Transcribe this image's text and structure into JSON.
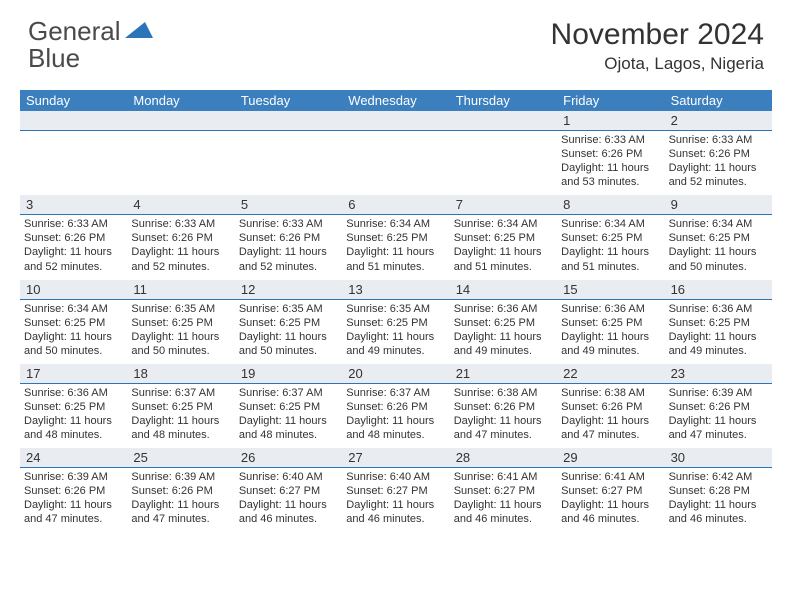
{
  "brand": {
    "part1": "General",
    "part2": "Blue"
  },
  "colors": {
    "header_bg": "#3b7fbf",
    "daynum_bg": "#e9edf1",
    "daynum_border": "#2b74b8",
    "text": "#333333",
    "logo_gray": "#4a4a4a",
    "logo_blue": "#2b74b8",
    "white": "#ffffff"
  },
  "title": "November 2024",
  "location": "Ojota, Lagos, Nigeria",
  "weekdays": [
    "Sunday",
    "Monday",
    "Tuesday",
    "Wednesday",
    "Thursday",
    "Friday",
    "Saturday"
  ],
  "weeks": [
    {
      "nums": [
        "",
        "",
        "",
        "",
        "",
        "1",
        "2"
      ],
      "cells": [
        null,
        null,
        null,
        null,
        null,
        {
          "sunrise": "Sunrise: 6:33 AM",
          "sunset": "Sunset: 6:26 PM",
          "day1": "Daylight: 11 hours",
          "day2": "and 53 minutes."
        },
        {
          "sunrise": "Sunrise: 6:33 AM",
          "sunset": "Sunset: 6:26 PM",
          "day1": "Daylight: 11 hours",
          "day2": "and 52 minutes."
        }
      ]
    },
    {
      "nums": [
        "3",
        "4",
        "5",
        "6",
        "7",
        "8",
        "9"
      ],
      "cells": [
        {
          "sunrise": "Sunrise: 6:33 AM",
          "sunset": "Sunset: 6:26 PM",
          "day1": "Daylight: 11 hours",
          "day2": "and 52 minutes."
        },
        {
          "sunrise": "Sunrise: 6:33 AM",
          "sunset": "Sunset: 6:26 PM",
          "day1": "Daylight: 11 hours",
          "day2": "and 52 minutes."
        },
        {
          "sunrise": "Sunrise: 6:33 AM",
          "sunset": "Sunset: 6:26 PM",
          "day1": "Daylight: 11 hours",
          "day2": "and 52 minutes."
        },
        {
          "sunrise": "Sunrise: 6:34 AM",
          "sunset": "Sunset: 6:25 PM",
          "day1": "Daylight: 11 hours",
          "day2": "and 51 minutes."
        },
        {
          "sunrise": "Sunrise: 6:34 AM",
          "sunset": "Sunset: 6:25 PM",
          "day1": "Daylight: 11 hours",
          "day2": "and 51 minutes."
        },
        {
          "sunrise": "Sunrise: 6:34 AM",
          "sunset": "Sunset: 6:25 PM",
          "day1": "Daylight: 11 hours",
          "day2": "and 51 minutes."
        },
        {
          "sunrise": "Sunrise: 6:34 AM",
          "sunset": "Sunset: 6:25 PM",
          "day1": "Daylight: 11 hours",
          "day2": "and 50 minutes."
        }
      ]
    },
    {
      "nums": [
        "10",
        "11",
        "12",
        "13",
        "14",
        "15",
        "16"
      ],
      "cells": [
        {
          "sunrise": "Sunrise: 6:34 AM",
          "sunset": "Sunset: 6:25 PM",
          "day1": "Daylight: 11 hours",
          "day2": "and 50 minutes."
        },
        {
          "sunrise": "Sunrise: 6:35 AM",
          "sunset": "Sunset: 6:25 PM",
          "day1": "Daylight: 11 hours",
          "day2": "and 50 minutes."
        },
        {
          "sunrise": "Sunrise: 6:35 AM",
          "sunset": "Sunset: 6:25 PM",
          "day1": "Daylight: 11 hours",
          "day2": "and 50 minutes."
        },
        {
          "sunrise": "Sunrise: 6:35 AM",
          "sunset": "Sunset: 6:25 PM",
          "day1": "Daylight: 11 hours",
          "day2": "and 49 minutes."
        },
        {
          "sunrise": "Sunrise: 6:36 AM",
          "sunset": "Sunset: 6:25 PM",
          "day1": "Daylight: 11 hours",
          "day2": "and 49 minutes."
        },
        {
          "sunrise": "Sunrise: 6:36 AM",
          "sunset": "Sunset: 6:25 PM",
          "day1": "Daylight: 11 hours",
          "day2": "and 49 minutes."
        },
        {
          "sunrise": "Sunrise: 6:36 AM",
          "sunset": "Sunset: 6:25 PM",
          "day1": "Daylight: 11 hours",
          "day2": "and 49 minutes."
        }
      ]
    },
    {
      "nums": [
        "17",
        "18",
        "19",
        "20",
        "21",
        "22",
        "23"
      ],
      "cells": [
        {
          "sunrise": "Sunrise: 6:36 AM",
          "sunset": "Sunset: 6:25 PM",
          "day1": "Daylight: 11 hours",
          "day2": "and 48 minutes."
        },
        {
          "sunrise": "Sunrise: 6:37 AM",
          "sunset": "Sunset: 6:25 PM",
          "day1": "Daylight: 11 hours",
          "day2": "and 48 minutes."
        },
        {
          "sunrise": "Sunrise: 6:37 AM",
          "sunset": "Sunset: 6:25 PM",
          "day1": "Daylight: 11 hours",
          "day2": "and 48 minutes."
        },
        {
          "sunrise": "Sunrise: 6:37 AM",
          "sunset": "Sunset: 6:26 PM",
          "day1": "Daylight: 11 hours",
          "day2": "and 48 minutes."
        },
        {
          "sunrise": "Sunrise: 6:38 AM",
          "sunset": "Sunset: 6:26 PM",
          "day1": "Daylight: 11 hours",
          "day2": "and 47 minutes."
        },
        {
          "sunrise": "Sunrise: 6:38 AM",
          "sunset": "Sunset: 6:26 PM",
          "day1": "Daylight: 11 hours",
          "day2": "and 47 minutes."
        },
        {
          "sunrise": "Sunrise: 6:39 AM",
          "sunset": "Sunset: 6:26 PM",
          "day1": "Daylight: 11 hours",
          "day2": "and 47 minutes."
        }
      ]
    },
    {
      "nums": [
        "24",
        "25",
        "26",
        "27",
        "28",
        "29",
        "30"
      ],
      "cells": [
        {
          "sunrise": "Sunrise: 6:39 AM",
          "sunset": "Sunset: 6:26 PM",
          "day1": "Daylight: 11 hours",
          "day2": "and 47 minutes."
        },
        {
          "sunrise": "Sunrise: 6:39 AM",
          "sunset": "Sunset: 6:26 PM",
          "day1": "Daylight: 11 hours",
          "day2": "and 47 minutes."
        },
        {
          "sunrise": "Sunrise: 6:40 AM",
          "sunset": "Sunset: 6:27 PM",
          "day1": "Daylight: 11 hours",
          "day2": "and 46 minutes."
        },
        {
          "sunrise": "Sunrise: 6:40 AM",
          "sunset": "Sunset: 6:27 PM",
          "day1": "Daylight: 11 hours",
          "day2": "and 46 minutes."
        },
        {
          "sunrise": "Sunrise: 6:41 AM",
          "sunset": "Sunset: 6:27 PM",
          "day1": "Daylight: 11 hours",
          "day2": "and 46 minutes."
        },
        {
          "sunrise": "Sunrise: 6:41 AM",
          "sunset": "Sunset: 6:27 PM",
          "day1": "Daylight: 11 hours",
          "day2": "and 46 minutes."
        },
        {
          "sunrise": "Sunrise: 6:42 AM",
          "sunset": "Sunset: 6:28 PM",
          "day1": "Daylight: 11 hours",
          "day2": "and 46 minutes."
        }
      ]
    }
  ]
}
